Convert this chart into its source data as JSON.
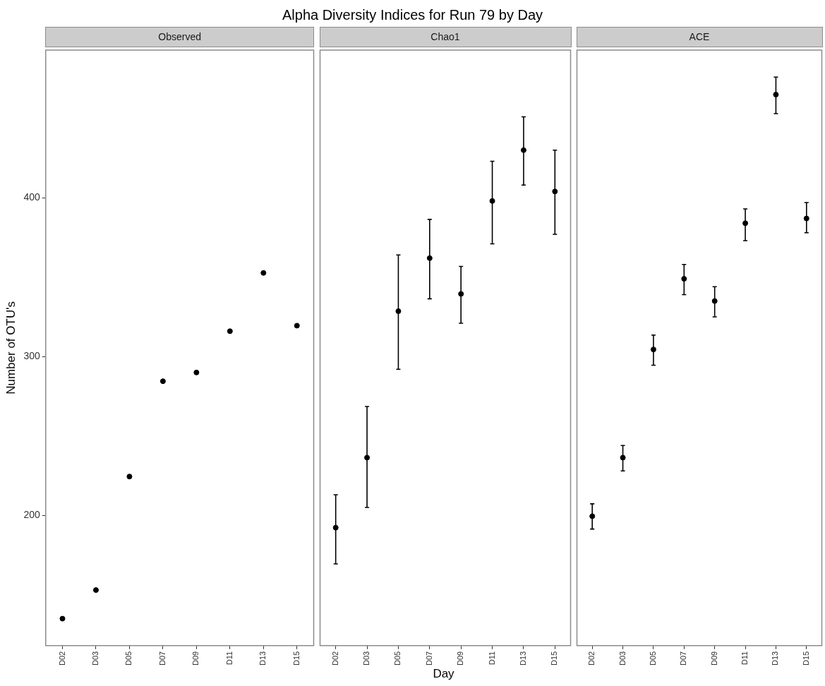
{
  "chart_data": [
    {
      "type": "scatter",
      "title": "Observed",
      "ylabel": "Number of OTU's",
      "annotations": [
        "Alpha Diversity Indices for Run 79 by Day"
      ],
      "categories": [
        "D02",
        "D03",
        "D05",
        "D07",
        "D09",
        "D11",
        "D13",
        "D15"
      ],
      "values": [
        135,
        153,
        224.5,
        284.5,
        290,
        316,
        352.7,
        319.5
      ],
      "color": "#000000",
      "ylim": [
        118,
        493
      ],
      "yticks": [
        200,
        300,
        400
      ],
      "grid": false,
      "marker": "circle"
    },
    {
      "type": "scatter",
      "title": "Chao1",
      "xlabel": "Day",
      "categories": [
        "D02",
        "D03",
        "D05",
        "D07",
        "D09",
        "D11",
        "D13",
        "D15"
      ],
      "values": [
        192.3,
        236.4,
        328.6,
        362,
        339.5,
        398,
        430,
        404
      ],
      "color": "#000000",
      "errors": [
        [
          169.5,
          213
        ],
        [
          205,
          268.6
        ],
        [
          292,
          364
        ],
        [
          336.4,
          386.4
        ],
        [
          321,
          356.8
        ],
        [
          371,
          423
        ],
        [
          408,
          451
        ],
        [
          377,
          430
        ]
      ],
      "ylim": [
        118,
        493
      ],
      "yticks": [
        200,
        300,
        400
      ],
      "grid": false,
      "marker": "circle",
      "tick_labels": "x"
    },
    {
      "type": "scatter",
      "title": "ACE",
      "categories": [
        "D02",
        "D03",
        "D05",
        "D07",
        "D09",
        "D11",
        "D13",
        "D15"
      ],
      "values": [
        199.5,
        236.4,
        304.5,
        349,
        335,
        384,
        465,
        387
      ],
      "color": "#000000",
      "errors": [
        [
          191.4,
          207.3
        ],
        [
          228,
          244
        ],
        [
          294.6,
          313.6
        ],
        [
          339,
          358
        ],
        [
          325,
          344
        ],
        [
          373,
          393
        ],
        [
          453,
          476
        ],
        [
          378,
          397
        ]
      ],
      "ylim": [
        118,
        493
      ],
      "yticks": [
        200,
        300,
        400
      ],
      "grid": false,
      "marker": "circle",
      "tick_labels": "x"
    }
  ]
}
